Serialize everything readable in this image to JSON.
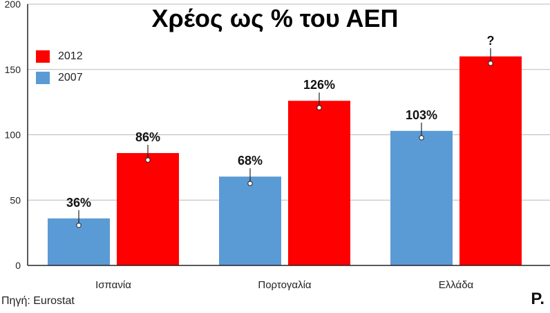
{
  "title": "Χρέος ως % του ΑΕΠ",
  "source": "Πηγή: Eurostat",
  "logo_text": "P.",
  "chart_data": {
    "type": "bar",
    "title": "Χρέος ως % του ΑΕΠ",
    "categories": [
      "Ισπανία",
      "Πορτογαλία",
      "Ελλάδα"
    ],
    "series": [
      {
        "name": "2007",
        "values": [
          36,
          68,
          103
        ],
        "labels": [
          "36%",
          "68%",
          "103%"
        ],
        "color": "#5b9bd5"
      },
      {
        "name": "2012",
        "values": [
          86,
          126,
          160
        ],
        "labels": [
          "86%",
          "126%",
          "?"
        ],
        "color": "#ff0000"
      }
    ],
    "legend_order": [
      "2012",
      "2007"
    ],
    "legend_position": "top-left",
    "ylim": [
      0,
      200
    ],
    "yticks": [
      0,
      50,
      100,
      150,
      200
    ],
    "grid": true,
    "xlabel": "",
    "ylabel": ""
  }
}
